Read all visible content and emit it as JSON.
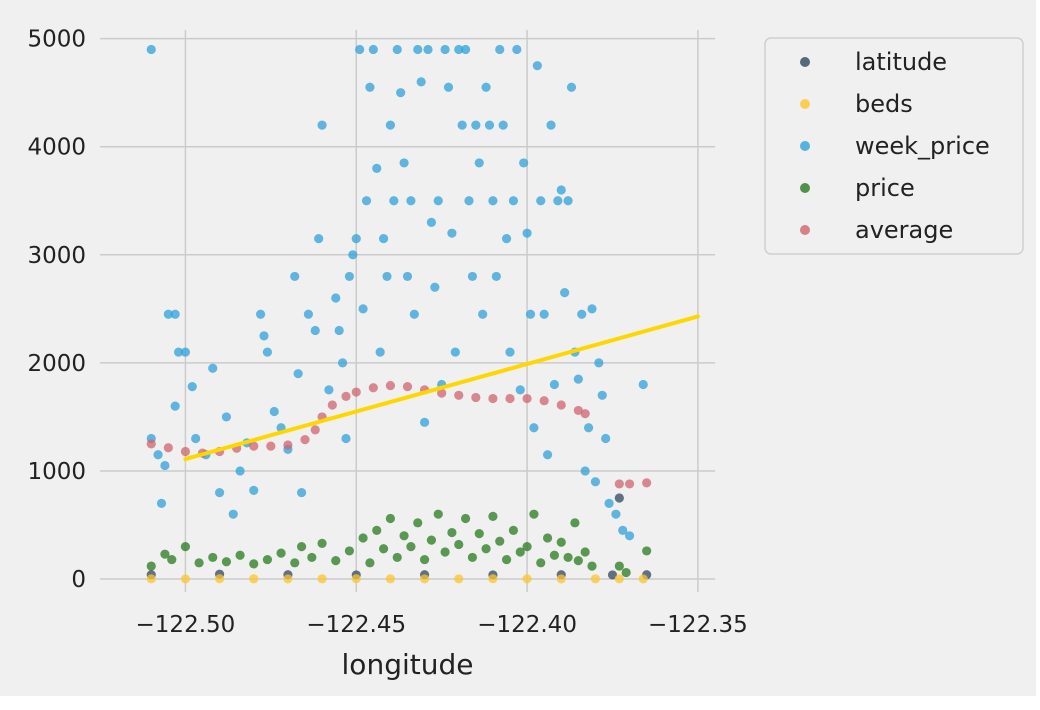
{
  "chart_data": {
    "type": "scatter",
    "title": "",
    "xlabel": "longitude",
    "ylabel": "",
    "xlim": [
      -122.525,
      -122.345
    ],
    "ylim": [
      -120,
      5080
    ],
    "x_ticks": [
      -122.5,
      -122.45,
      -122.4,
      -122.35
    ],
    "x_tick_labels": [
      "−122.50",
      "−122.45",
      "−122.40",
      "−122.35"
    ],
    "y_ticks": [
      0,
      1000,
      2000,
      3000,
      4000,
      5000
    ],
    "y_tick_labels": [
      "0",
      "1000",
      "2000",
      "3000",
      "4000",
      "5000"
    ],
    "grid": true,
    "legend_position": "outside-right",
    "colors": {
      "figure_bg": "#f0f0f0",
      "axes_bg": "#f0f0f0",
      "grid": "#cbcbcb",
      "fit_line": "#ffd700"
    },
    "series": [
      {
        "name": "latitude",
        "color": "#30475e",
        "points": [
          [
            -122.51,
            40
          ],
          [
            -122.49,
            45
          ],
          [
            -122.47,
            40
          ],
          [
            -122.45,
            38
          ],
          [
            -122.43,
            40
          ],
          [
            -122.41,
            38
          ],
          [
            -122.39,
            40
          ],
          [
            -122.375,
            38
          ],
          [
            -122.373,
            750
          ],
          [
            -122.365,
            40
          ]
        ]
      },
      {
        "name": "beds",
        "color": "#fcc630",
        "points": [
          [
            -122.51,
            2
          ],
          [
            -122.5,
            1
          ],
          [
            -122.49,
            3
          ],
          [
            -122.48,
            2
          ],
          [
            -122.47,
            1
          ],
          [
            -122.46,
            2
          ],
          [
            -122.45,
            3
          ],
          [
            -122.44,
            2
          ],
          [
            -122.43,
            1
          ],
          [
            -122.42,
            2
          ],
          [
            -122.41,
            3
          ],
          [
            -122.4,
            2
          ],
          [
            -122.39,
            1
          ],
          [
            -122.38,
            2
          ],
          [
            -122.373,
            2
          ],
          [
            -122.366,
            1
          ]
        ]
      },
      {
        "name": "week_price",
        "color": "#30a2da",
        "points": [
          [
            -122.51,
            4900
          ],
          [
            -122.51,
            1300
          ],
          [
            -122.508,
            1150
          ],
          [
            -122.506,
            1050
          ],
          [
            -122.505,
            2450
          ],
          [
            -122.503,
            2450
          ],
          [
            -122.507,
            700
          ],
          [
            -122.503,
            1600
          ],
          [
            -122.502,
            2100
          ],
          [
            -122.5,
            2100
          ],
          [
            -122.498,
            1780
          ],
          [
            -122.497,
            1300
          ],
          [
            -122.494,
            1150
          ],
          [
            -122.492,
            1950
          ],
          [
            -122.49,
            800
          ],
          [
            -122.488,
            1500
          ],
          [
            -122.486,
            600
          ],
          [
            -122.484,
            1000
          ],
          [
            -122.482,
            1260
          ],
          [
            -122.48,
            820
          ],
          [
            -122.478,
            2450
          ],
          [
            -122.477,
            2250
          ],
          [
            -122.476,
            2100
          ],
          [
            -122.474,
            1550
          ],
          [
            -122.472,
            1400
          ],
          [
            -122.47,
            1200
          ],
          [
            -122.468,
            2800
          ],
          [
            -122.467,
            1900
          ],
          [
            -122.466,
            800
          ],
          [
            -122.464,
            2450
          ],
          [
            -122.462,
            2300
          ],
          [
            -122.461,
            3150
          ],
          [
            -122.46,
            4200
          ],
          [
            -122.458,
            1750
          ],
          [
            -122.456,
            2600
          ],
          [
            -122.455,
            2300
          ],
          [
            -122.454,
            2000
          ],
          [
            -122.453,
            1300
          ],
          [
            -122.452,
            2800
          ],
          [
            -122.451,
            3000
          ],
          [
            -122.45,
            3150
          ],
          [
            -122.449,
            4900
          ],
          [
            -122.448,
            2500
          ],
          [
            -122.447,
            3500
          ],
          [
            -122.446,
            4550
          ],
          [
            -122.445,
            4900
          ],
          [
            -122.444,
            3800
          ],
          [
            -122.443,
            2100
          ],
          [
            -122.442,
            3150
          ],
          [
            -122.441,
            2800
          ],
          [
            -122.44,
            4200
          ],
          [
            -122.439,
            3500
          ],
          [
            -122.438,
            4900
          ],
          [
            -122.437,
            4500
          ],
          [
            -122.436,
            3850
          ],
          [
            -122.435,
            2800
          ],
          [
            -122.434,
            3500
          ],
          [
            -122.433,
            2450
          ],
          [
            -122.432,
            4900
          ],
          [
            -122.431,
            4600
          ],
          [
            -122.43,
            1450
          ],
          [
            -122.429,
            4900
          ],
          [
            -122.428,
            3300
          ],
          [
            -122.427,
            2700
          ],
          [
            -122.426,
            3500
          ],
          [
            -122.425,
            1800
          ],
          [
            -122.424,
            4900
          ],
          [
            -122.423,
            4550
          ],
          [
            -122.422,
            3200
          ],
          [
            -122.421,
            2100
          ],
          [
            -122.42,
            4900
          ],
          [
            -122.419,
            4200
          ],
          [
            -122.418,
            4900
          ],
          [
            -122.417,
            3500
          ],
          [
            -122.416,
            2800
          ],
          [
            -122.415,
            4200
          ],
          [
            -122.414,
            3850
          ],
          [
            -122.413,
            2450
          ],
          [
            -122.412,
            4550
          ],
          [
            -122.411,
            4200
          ],
          [
            -122.41,
            3500
          ],
          [
            -122.409,
            2800
          ],
          [
            -122.408,
            4900
          ],
          [
            -122.407,
            4200
          ],
          [
            -122.406,
            3150
          ],
          [
            -122.405,
            2100
          ],
          [
            -122.404,
            3500
          ],
          [
            -122.403,
            4900
          ],
          [
            -122.402,
            1750
          ],
          [
            -122.401,
            3850
          ],
          [
            -122.4,
            3200
          ],
          [
            -122.399,
            2450
          ],
          [
            -122.398,
            1400
          ],
          [
            -122.397,
            4750
          ],
          [
            -122.396,
            3500
          ],
          [
            -122.395,
            2450
          ],
          [
            -122.394,
            1150
          ],
          [
            -122.393,
            4200
          ],
          [
            -122.392,
            1800
          ],
          [
            -122.391,
            3500
          ],
          [
            -122.39,
            3600
          ],
          [
            -122.389,
            2650
          ],
          [
            -122.388,
            3500
          ],
          [
            -122.387,
            4550
          ],
          [
            -122.386,
            2100
          ],
          [
            -122.385,
            1850
          ],
          [
            -122.384,
            2450
          ],
          [
            -122.383,
            1000
          ],
          [
            -122.382,
            1400
          ],
          [
            -122.381,
            2500
          ],
          [
            -122.38,
            900
          ],
          [
            -122.379,
            2000
          ],
          [
            -122.378,
            1700
          ],
          [
            -122.377,
            1300
          ],
          [
            -122.376,
            700
          ],
          [
            -122.374,
            600
          ],
          [
            -122.372,
            450
          ],
          [
            -122.37,
            400
          ],
          [
            -122.366,
            1800
          ]
        ]
      },
      {
        "name": "price",
        "color": "#277a1f",
        "points": [
          [
            -122.51,
            120
          ],
          [
            -122.506,
            230
          ],
          [
            -122.504,
            180
          ],
          [
            -122.5,
            300
          ],
          [
            -122.496,
            150
          ],
          [
            -122.492,
            200
          ],
          [
            -122.488,
            160
          ],
          [
            -122.484,
            220
          ],
          [
            -122.48,
            140
          ],
          [
            -122.476,
            180
          ],
          [
            -122.472,
            240
          ],
          [
            -122.468,
            150
          ],
          [
            -122.466,
            300
          ],
          [
            -122.463,
            200
          ],
          [
            -122.46,
            330
          ],
          [
            -122.456,
            170
          ],
          [
            -122.452,
            260
          ],
          [
            -122.448,
            380
          ],
          [
            -122.446,
            150
          ],
          [
            -122.444,
            450
          ],
          [
            -122.442,
            280
          ],
          [
            -122.44,
            560
          ],
          [
            -122.438,
            200
          ],
          [
            -122.436,
            400
          ],
          [
            -122.434,
            300
          ],
          [
            -122.432,
            520
          ],
          [
            -122.43,
            180
          ],
          [
            -122.428,
            360
          ],
          [
            -122.426,
            600
          ],
          [
            -122.424,
            250
          ],
          [
            -122.422,
            430
          ],
          [
            -122.42,
            320
          ],
          [
            -122.418,
            560
          ],
          [
            -122.416,
            200
          ],
          [
            -122.414,
            420
          ],
          [
            -122.412,
            280
          ],
          [
            -122.41,
            580
          ],
          [
            -122.408,
            350
          ],
          [
            -122.406,
            180
          ],
          [
            -122.404,
            450
          ],
          [
            -122.402,
            250
          ],
          [
            -122.4,
            300
          ],
          [
            -122.398,
            600
          ],
          [
            -122.396,
            150
          ],
          [
            -122.394,
            380
          ],
          [
            -122.392,
            220
          ],
          [
            -122.39,
            340
          ],
          [
            -122.388,
            200
          ],
          [
            -122.386,
            520
          ],
          [
            -122.385,
            170
          ],
          [
            -122.383,
            250
          ],
          [
            -122.381,
            120
          ],
          [
            -122.373,
            120
          ],
          [
            -122.371,
            60
          ],
          [
            -122.365,
            260
          ]
        ]
      },
      {
        "name": "average",
        "color": "#d0646e",
        "points": [
          [
            -122.51,
            1250
          ],
          [
            -122.505,
            1215
          ],
          [
            -122.5,
            1180
          ],
          [
            -122.495,
            1165
          ],
          [
            -122.49,
            1180
          ],
          [
            -122.485,
            1210
          ],
          [
            -122.48,
            1230
          ],
          [
            -122.475,
            1230
          ],
          [
            -122.47,
            1240
          ],
          [
            -122.465,
            1290
          ],
          [
            -122.462,
            1380
          ],
          [
            -122.46,
            1500
          ],
          [
            -122.457,
            1610
          ],
          [
            -122.453,
            1690
          ],
          [
            -122.45,
            1730
          ],
          [
            -122.445,
            1770
          ],
          [
            -122.44,
            1790
          ],
          [
            -122.435,
            1780
          ],
          [
            -122.43,
            1750
          ],
          [
            -122.425,
            1720
          ],
          [
            -122.42,
            1700
          ],
          [
            -122.415,
            1680
          ],
          [
            -122.41,
            1670
          ],
          [
            -122.405,
            1670
          ],
          [
            -122.4,
            1670
          ],
          [
            -122.395,
            1650
          ],
          [
            -122.39,
            1610
          ],
          [
            -122.385,
            1560
          ],
          [
            -122.383,
            1530
          ],
          [
            -122.373,
            880
          ],
          [
            -122.37,
            880
          ],
          [
            -122.365,
            890
          ]
        ]
      }
    ],
    "fit_line": {
      "points": [
        [
          -122.5,
          1110
        ],
        [
          -122.35,
          2430
        ]
      ]
    }
  }
}
